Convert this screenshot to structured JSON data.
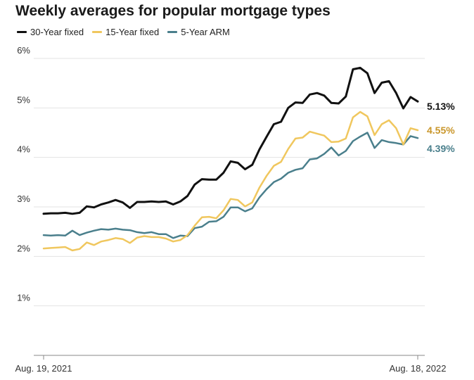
{
  "chart_data": {
    "type": "line",
    "title": "Weekly averages for popular mortgage types",
    "x_start": "Aug. 19, 2021",
    "x_end": "Aug. 18, 2022",
    "x_tick_labels": [
      "Aug. 19, 2021",
      "Aug. 18, 2022"
    ],
    "y_ticks": [
      1,
      2,
      3,
      4,
      5,
      6
    ],
    "y_tick_labels": [
      "1%",
      "2%",
      "3%",
      "4%",
      "5%",
      "6%"
    ],
    "ylim": [
      0,
      6
    ],
    "grid": "horizontal",
    "legend": "top-left",
    "series": [
      {
        "name": "30-Year fixed",
        "color": "#111111",
        "end_label": "5.13%",
        "values": [
          2.86,
          2.87,
          2.87,
          2.88,
          2.86,
          2.88,
          3.01,
          2.99,
          3.05,
          3.09,
          3.14,
          3.09,
          2.98,
          3.1,
          3.1,
          3.11,
          3.1,
          3.11,
          3.05,
          3.11,
          3.22,
          3.45,
          3.56,
          3.55,
          3.55,
          3.69,
          3.92,
          3.89,
          3.76,
          3.85,
          4.16,
          4.42,
          4.67,
          4.72,
          5.0,
          5.11,
          5.1,
          5.27,
          5.3,
          5.25,
          5.1,
          5.09,
          5.23,
          5.78,
          5.81,
          5.7,
          5.3,
          5.51,
          5.54,
          5.3,
          4.99,
          5.22,
          5.13
        ]
      },
      {
        "name": "15-Year fixed",
        "color": "#f0c75e",
        "end_label": "4.55%",
        "values": [
          2.16,
          2.17,
          2.18,
          2.19,
          2.12,
          2.15,
          2.28,
          2.23,
          2.3,
          2.33,
          2.37,
          2.35,
          2.27,
          2.38,
          2.41,
          2.39,
          2.39,
          2.36,
          2.3,
          2.33,
          2.43,
          2.62,
          2.79,
          2.8,
          2.77,
          2.93,
          3.16,
          3.14,
          3.01,
          3.09,
          3.39,
          3.63,
          3.83,
          3.91,
          4.17,
          4.38,
          4.4,
          4.52,
          4.48,
          4.44,
          4.31,
          4.32,
          4.38,
          4.81,
          4.92,
          4.83,
          4.45,
          4.67,
          4.75,
          4.59,
          4.26,
          4.59,
          4.55
        ]
      },
      {
        "name": "5-Year ARM",
        "color": "#4a7f8c",
        "end_label": "4.39%",
        "values": [
          2.43,
          2.42,
          2.43,
          2.42,
          2.52,
          2.43,
          2.48,
          2.52,
          2.55,
          2.54,
          2.56,
          2.54,
          2.53,
          2.49,
          2.47,
          2.49,
          2.45,
          2.45,
          2.37,
          2.42,
          2.41,
          2.57,
          2.6,
          2.7,
          2.71,
          2.8,
          2.99,
          2.99,
          2.91,
          2.97,
          3.19,
          3.36,
          3.5,
          3.57,
          3.69,
          3.75,
          3.78,
          3.96,
          3.98,
          4.07,
          4.2,
          4.04,
          4.13,
          4.33,
          4.42,
          4.5,
          4.19,
          4.35,
          4.31,
          4.29,
          4.26,
          4.43,
          4.39
        ]
      }
    ]
  }
}
